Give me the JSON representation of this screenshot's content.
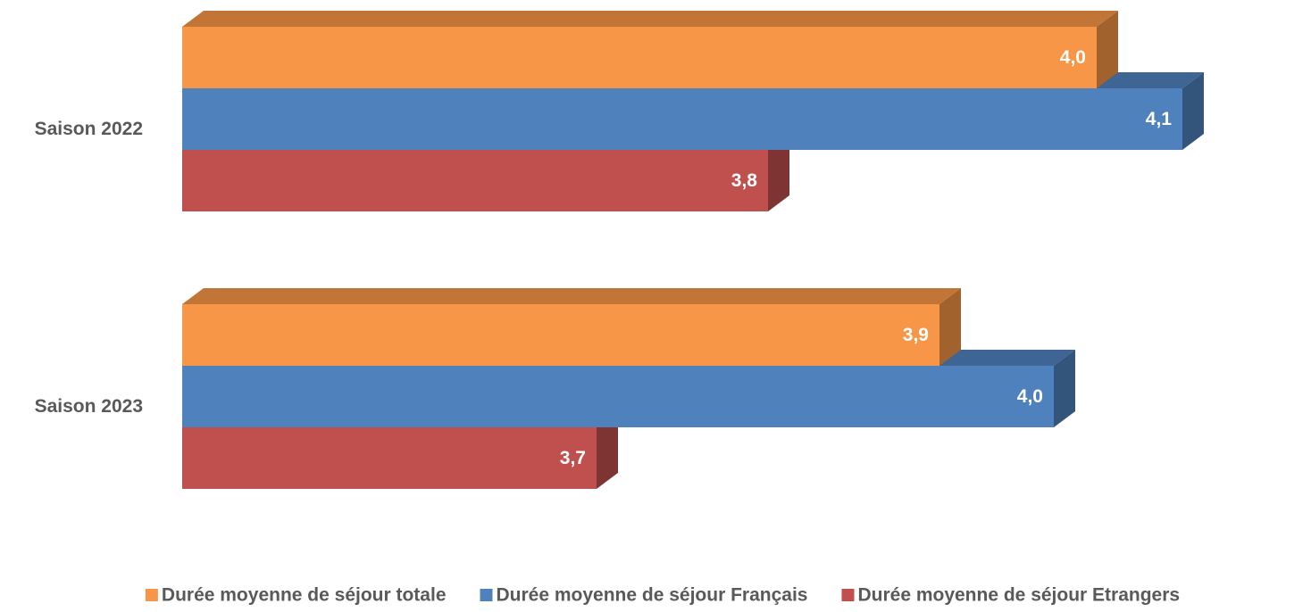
{
  "chart_data": {
    "type": "bar3d_horizontal",
    "categories": [
      "Saison 2022",
      "Saison 2023"
    ],
    "series": [
      {
        "name": "Durée moyenne de séjour totale",
        "color": "#F79646",
        "values": [
          4.04,
          3.93
        ],
        "value_labels": [
          "4,0",
          "3,9"
        ]
      },
      {
        "name": "Durée moyenne de séjour Français",
        "color": "#4F81BD",
        "values": [
          4.1,
          4.01
        ],
        "value_labels": [
          "4,1",
          "4,0"
        ]
      },
      {
        "name": "Durée moyenne de séjour Etrangers",
        "color": "#C0504D",
        "values": [
          3.81,
          3.69
        ],
        "value_labels": [
          "3,8",
          "3,7"
        ]
      }
    ],
    "xlim": [
      3.4,
      4.15
    ],
    "legend": "bottom"
  }
}
